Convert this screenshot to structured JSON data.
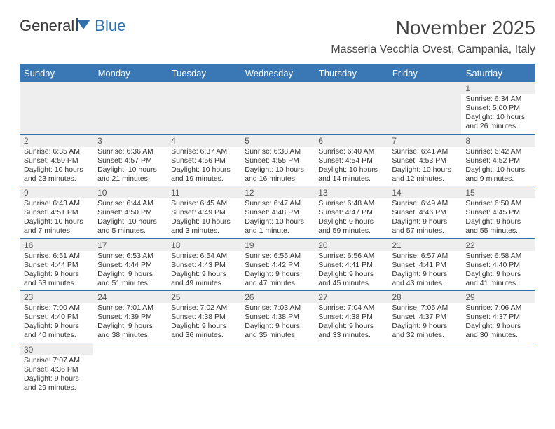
{
  "logo": {
    "text_a": "General",
    "text_b": "Blue"
  },
  "header": {
    "month_title": "November 2025",
    "location": "Masseria Vecchia Ovest, Campania, Italy"
  },
  "colors": {
    "header_bg": "#3a78b5",
    "grid_line": "#2f6fab",
    "daynum_bg": "#eeeeee"
  },
  "weekdays": [
    "Sunday",
    "Monday",
    "Tuesday",
    "Wednesday",
    "Thursday",
    "Friday",
    "Saturday"
  ],
  "weeks": [
    [
      null,
      null,
      null,
      null,
      null,
      null,
      {
        "n": "1",
        "sunrise": "Sunrise: 6:34 AM",
        "sunset": "Sunset: 5:00 PM",
        "dl1": "Daylight: 10 hours",
        "dl2": "and 26 minutes."
      }
    ],
    [
      {
        "n": "2",
        "sunrise": "Sunrise: 6:35 AM",
        "sunset": "Sunset: 4:59 PM",
        "dl1": "Daylight: 10 hours",
        "dl2": "and 23 minutes."
      },
      {
        "n": "3",
        "sunrise": "Sunrise: 6:36 AM",
        "sunset": "Sunset: 4:57 PM",
        "dl1": "Daylight: 10 hours",
        "dl2": "and 21 minutes."
      },
      {
        "n": "4",
        "sunrise": "Sunrise: 6:37 AM",
        "sunset": "Sunset: 4:56 PM",
        "dl1": "Daylight: 10 hours",
        "dl2": "and 19 minutes."
      },
      {
        "n": "5",
        "sunrise": "Sunrise: 6:38 AM",
        "sunset": "Sunset: 4:55 PM",
        "dl1": "Daylight: 10 hours",
        "dl2": "and 16 minutes."
      },
      {
        "n": "6",
        "sunrise": "Sunrise: 6:40 AM",
        "sunset": "Sunset: 4:54 PM",
        "dl1": "Daylight: 10 hours",
        "dl2": "and 14 minutes."
      },
      {
        "n": "7",
        "sunrise": "Sunrise: 6:41 AM",
        "sunset": "Sunset: 4:53 PM",
        "dl1": "Daylight: 10 hours",
        "dl2": "and 12 minutes."
      },
      {
        "n": "8",
        "sunrise": "Sunrise: 6:42 AM",
        "sunset": "Sunset: 4:52 PM",
        "dl1": "Daylight: 10 hours",
        "dl2": "and 9 minutes."
      }
    ],
    [
      {
        "n": "9",
        "sunrise": "Sunrise: 6:43 AM",
        "sunset": "Sunset: 4:51 PM",
        "dl1": "Daylight: 10 hours",
        "dl2": "and 7 minutes."
      },
      {
        "n": "10",
        "sunrise": "Sunrise: 6:44 AM",
        "sunset": "Sunset: 4:50 PM",
        "dl1": "Daylight: 10 hours",
        "dl2": "and 5 minutes."
      },
      {
        "n": "11",
        "sunrise": "Sunrise: 6:45 AM",
        "sunset": "Sunset: 4:49 PM",
        "dl1": "Daylight: 10 hours",
        "dl2": "and 3 minutes."
      },
      {
        "n": "12",
        "sunrise": "Sunrise: 6:47 AM",
        "sunset": "Sunset: 4:48 PM",
        "dl1": "Daylight: 10 hours",
        "dl2": "and 1 minute."
      },
      {
        "n": "13",
        "sunrise": "Sunrise: 6:48 AM",
        "sunset": "Sunset: 4:47 PM",
        "dl1": "Daylight: 9 hours",
        "dl2": "and 59 minutes."
      },
      {
        "n": "14",
        "sunrise": "Sunrise: 6:49 AM",
        "sunset": "Sunset: 4:46 PM",
        "dl1": "Daylight: 9 hours",
        "dl2": "and 57 minutes."
      },
      {
        "n": "15",
        "sunrise": "Sunrise: 6:50 AM",
        "sunset": "Sunset: 4:45 PM",
        "dl1": "Daylight: 9 hours",
        "dl2": "and 55 minutes."
      }
    ],
    [
      {
        "n": "16",
        "sunrise": "Sunrise: 6:51 AM",
        "sunset": "Sunset: 4:44 PM",
        "dl1": "Daylight: 9 hours",
        "dl2": "and 53 minutes."
      },
      {
        "n": "17",
        "sunrise": "Sunrise: 6:53 AM",
        "sunset": "Sunset: 4:44 PM",
        "dl1": "Daylight: 9 hours",
        "dl2": "and 51 minutes."
      },
      {
        "n": "18",
        "sunrise": "Sunrise: 6:54 AM",
        "sunset": "Sunset: 4:43 PM",
        "dl1": "Daylight: 9 hours",
        "dl2": "and 49 minutes."
      },
      {
        "n": "19",
        "sunrise": "Sunrise: 6:55 AM",
        "sunset": "Sunset: 4:42 PM",
        "dl1": "Daylight: 9 hours",
        "dl2": "and 47 minutes."
      },
      {
        "n": "20",
        "sunrise": "Sunrise: 6:56 AM",
        "sunset": "Sunset: 4:41 PM",
        "dl1": "Daylight: 9 hours",
        "dl2": "and 45 minutes."
      },
      {
        "n": "21",
        "sunrise": "Sunrise: 6:57 AM",
        "sunset": "Sunset: 4:41 PM",
        "dl1": "Daylight: 9 hours",
        "dl2": "and 43 minutes."
      },
      {
        "n": "22",
        "sunrise": "Sunrise: 6:58 AM",
        "sunset": "Sunset: 4:40 PM",
        "dl1": "Daylight: 9 hours",
        "dl2": "and 41 minutes."
      }
    ],
    [
      {
        "n": "23",
        "sunrise": "Sunrise: 7:00 AM",
        "sunset": "Sunset: 4:40 PM",
        "dl1": "Daylight: 9 hours",
        "dl2": "and 40 minutes."
      },
      {
        "n": "24",
        "sunrise": "Sunrise: 7:01 AM",
        "sunset": "Sunset: 4:39 PM",
        "dl1": "Daylight: 9 hours",
        "dl2": "and 38 minutes."
      },
      {
        "n": "25",
        "sunrise": "Sunrise: 7:02 AM",
        "sunset": "Sunset: 4:38 PM",
        "dl1": "Daylight: 9 hours",
        "dl2": "and 36 minutes."
      },
      {
        "n": "26",
        "sunrise": "Sunrise: 7:03 AM",
        "sunset": "Sunset: 4:38 PM",
        "dl1": "Daylight: 9 hours",
        "dl2": "and 35 minutes."
      },
      {
        "n": "27",
        "sunrise": "Sunrise: 7:04 AM",
        "sunset": "Sunset: 4:38 PM",
        "dl1": "Daylight: 9 hours",
        "dl2": "and 33 minutes."
      },
      {
        "n": "28",
        "sunrise": "Sunrise: 7:05 AM",
        "sunset": "Sunset: 4:37 PM",
        "dl1": "Daylight: 9 hours",
        "dl2": "and 32 minutes."
      },
      {
        "n": "29",
        "sunrise": "Sunrise: 7:06 AM",
        "sunset": "Sunset: 4:37 PM",
        "dl1": "Daylight: 9 hours",
        "dl2": "and 30 minutes."
      }
    ],
    [
      {
        "n": "30",
        "sunrise": "Sunrise: 7:07 AM",
        "sunset": "Sunset: 4:36 PM",
        "dl1": "Daylight: 9 hours",
        "dl2": "and 29 minutes."
      },
      null,
      null,
      null,
      null,
      null,
      null
    ]
  ]
}
